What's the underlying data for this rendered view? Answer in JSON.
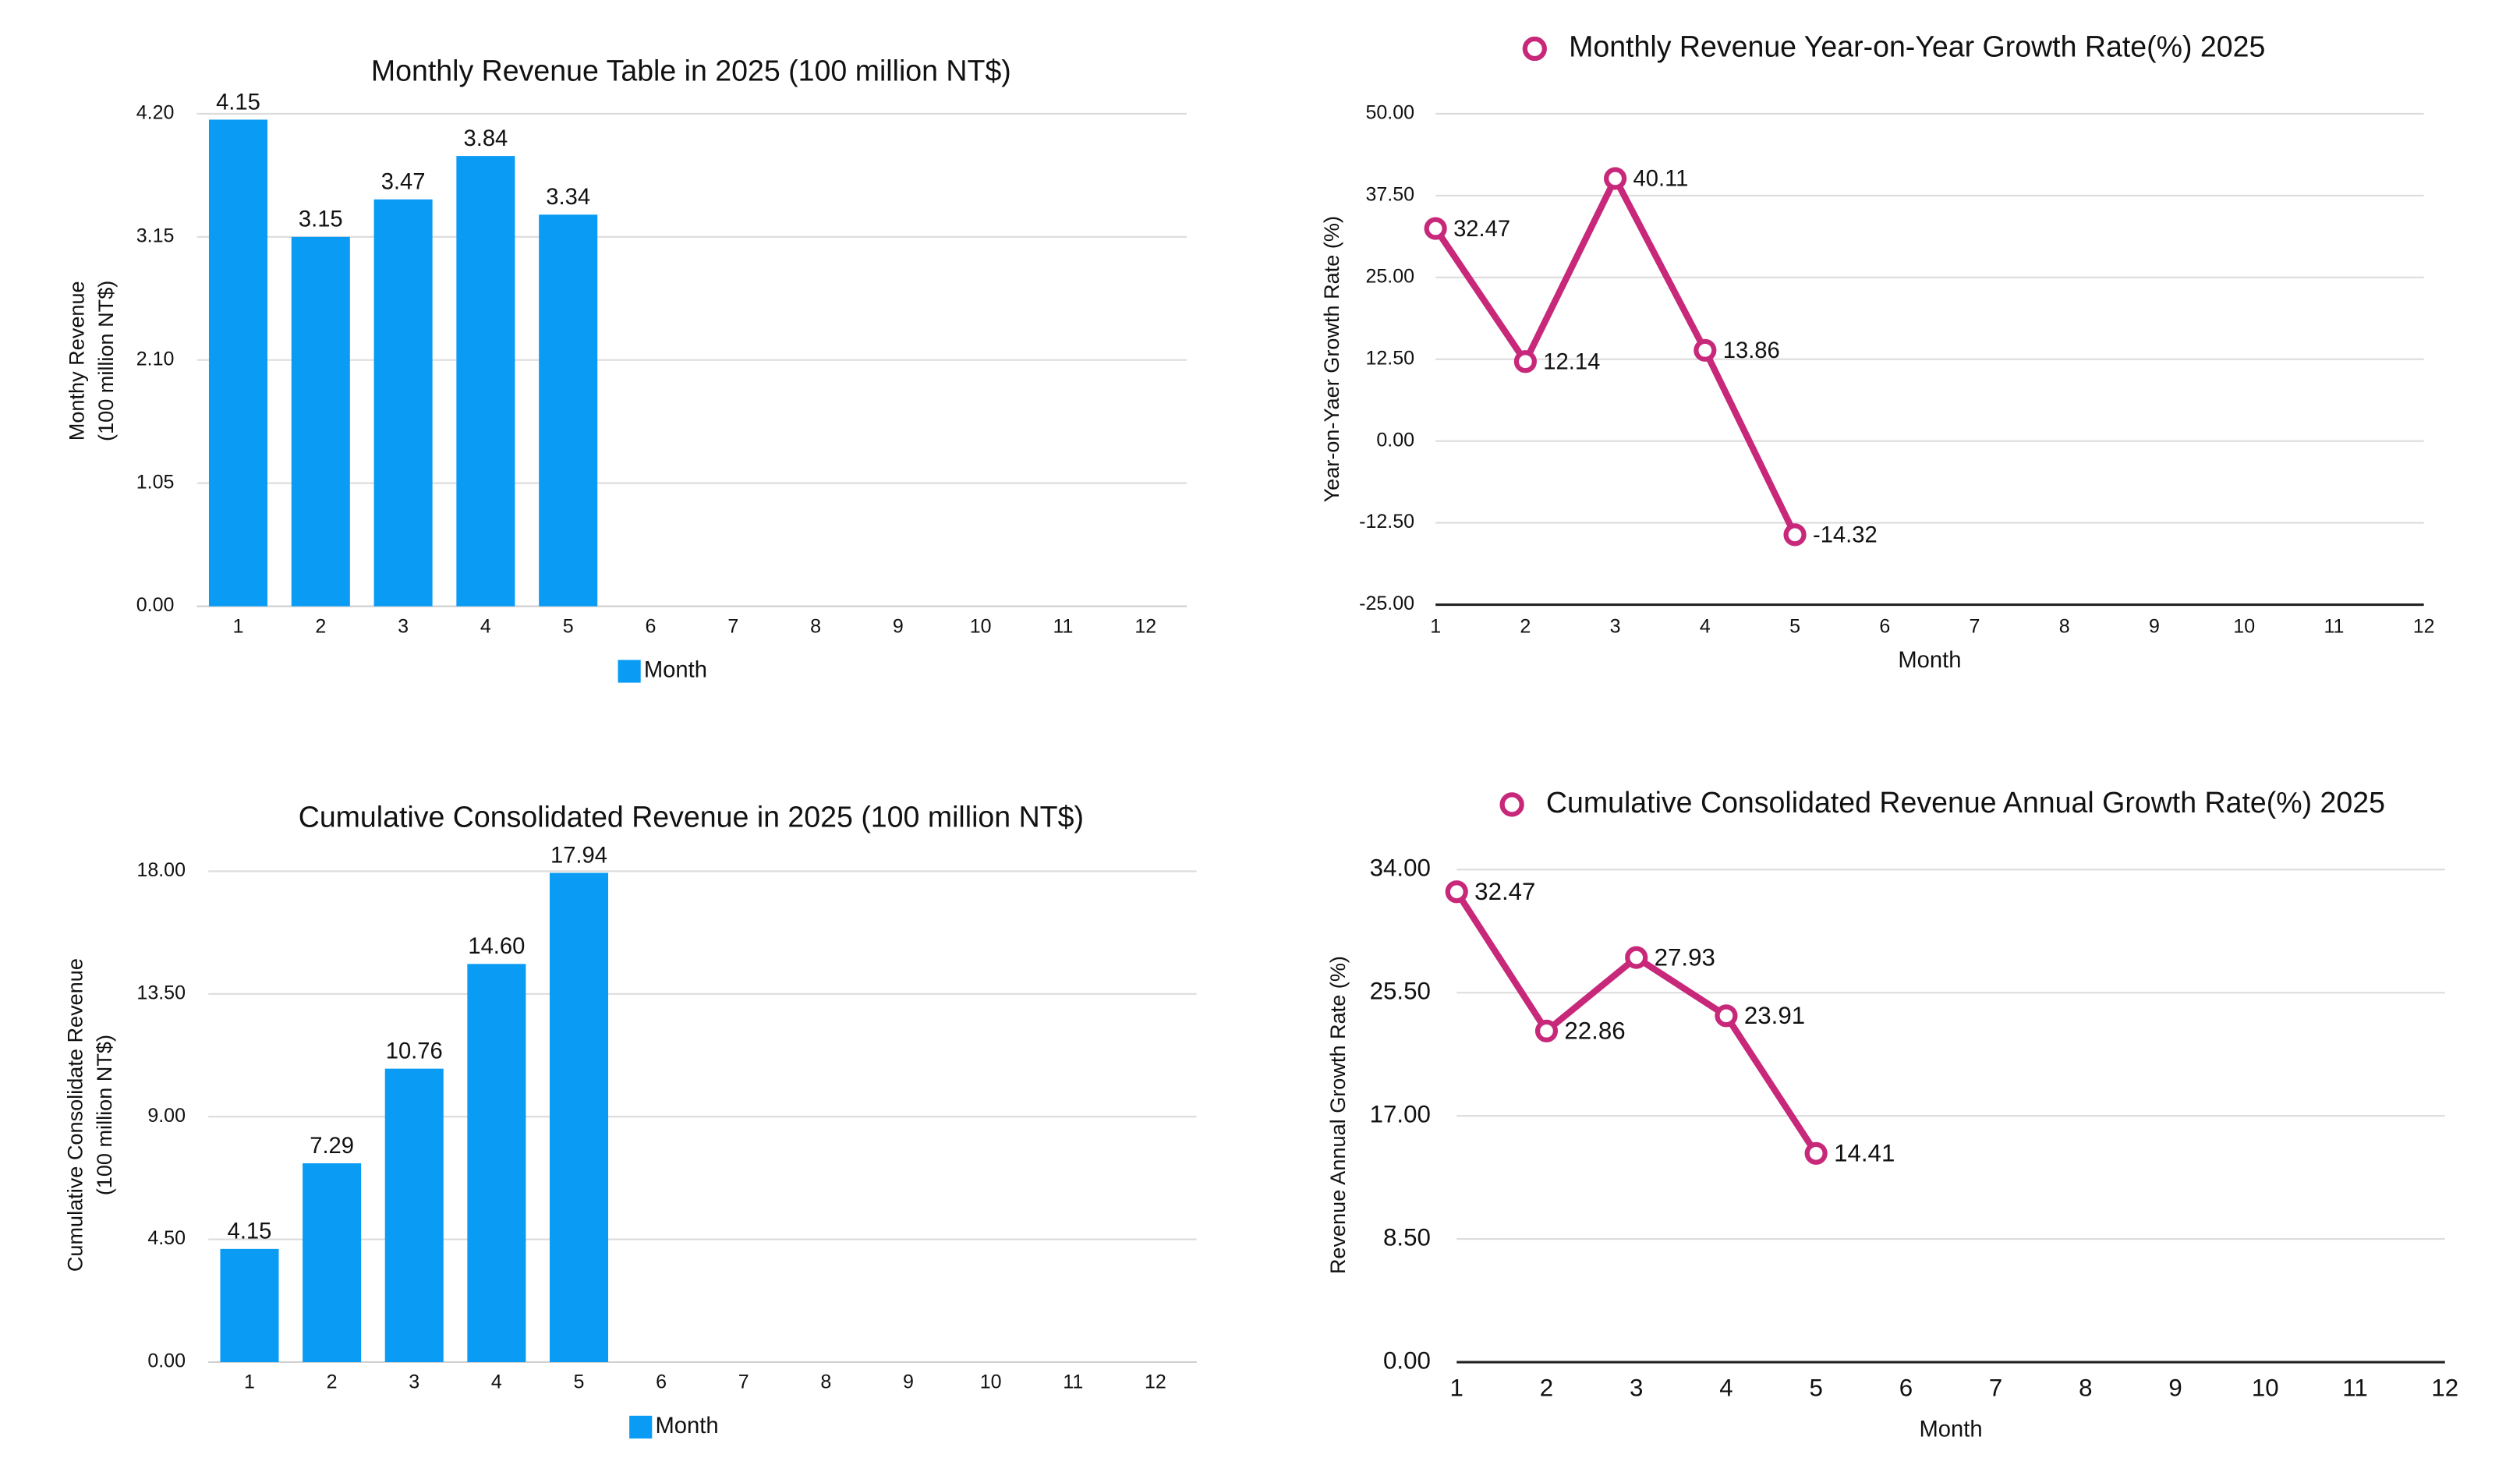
{
  "chart_data": [
    {
      "type": "bar",
      "title": "Monthly Revenue Table in 2025 (100 million NT$)",
      "ylabel": [
        "Monthy Revenue",
        "(100 million NT$)"
      ],
      "categories": [
        1,
        2,
        3,
        4,
        5,
        6,
        7,
        8,
        9,
        10,
        11,
        12
      ],
      "series": [
        {
          "name": "Month",
          "color": "#0a9cf5",
          "values": [
            4.15,
            3.15,
            3.47,
            3.84,
            3.34,
            null,
            null,
            null,
            null,
            null,
            null,
            null
          ],
          "value_labels": [
            "4.15",
            "3.15",
            "3.47",
            "3.84",
            "3.34",
            null,
            null,
            null,
            null,
            null,
            null,
            null
          ]
        }
      ],
      "ylim": [
        0,
        4.2
      ],
      "yticks": [
        {
          "value": 0,
          "label": "0.00"
        },
        {
          "value": 1.05,
          "label": "1.05"
        },
        {
          "value": 2.1,
          "label": "2.10"
        },
        {
          "value": 3.15,
          "label": "3.15"
        },
        {
          "value": 4.2,
          "label": "4.20"
        }
      ],
      "grid": true,
      "legend": "bottom"
    },
    {
      "type": "line",
      "ylabel": [
        "Year-on-Yaer Growth Rate (%)"
      ],
      "xlabel": "Month",
      "x": [
        1,
        2,
        3,
        4,
        5
      ],
      "series": [
        {
          "name": "Monthly Revenue Year-on-Year Growth Rate(%) 2025",
          "color": "#c8287a",
          "values": [
            32.47,
            12.14,
            40.11,
            13.86,
            -14.32
          ]
        }
      ],
      "xlim": [
        1,
        12
      ],
      "xticks": [
        1,
        2,
        3,
        4,
        5,
        6,
        7,
        8,
        9,
        10,
        11,
        12
      ],
      "ylim": [
        -25,
        50
      ],
      "yticks": [
        {
          "value": -25,
          "label": "-25.00"
        },
        {
          "value": -12.5,
          "label": "-12.50"
        },
        {
          "value": 0,
          "label": "0.00"
        },
        {
          "value": 12.5,
          "label": "12.50"
        },
        {
          "value": 25,
          "label": "25.00"
        },
        {
          "value": 37.5,
          "label": "37.50"
        },
        {
          "value": 50,
          "label": "50.00"
        }
      ],
      "grid": true,
      "legend": "top"
    },
    {
      "type": "bar",
      "title": "Cumulative Consolidated Revenue in 2025 (100 million NT$)",
      "ylabel": [
        "Cumulative Consolidate Revenue",
        "(100 million NT$)"
      ],
      "categories": [
        1,
        2,
        3,
        4,
        5,
        6,
        7,
        8,
        9,
        10,
        11,
        12
      ],
      "series": [
        {
          "name": "Month",
          "color": "#0a9cf5",
          "values": [
            4.15,
            7.29,
            10.76,
            14.6,
            17.94,
            null,
            null,
            null,
            null,
            null,
            null,
            null
          ],
          "value_labels": [
            "4.15",
            "7.29",
            "10.76",
            "14.60",
            "17.94",
            null,
            null,
            null,
            null,
            null,
            null,
            null
          ]
        }
      ],
      "ylim": [
        0,
        18
      ],
      "yticks": [
        {
          "value": 0,
          "label": "0.00"
        },
        {
          "value": 4.5,
          "label": "4.50"
        },
        {
          "value": 9,
          "label": "9.00"
        },
        {
          "value": 13.5,
          "label": "13.50"
        },
        {
          "value": 18,
          "label": "18.00"
        }
      ],
      "grid": true,
      "legend": "bottom"
    },
    {
      "type": "line",
      "ylabel": [
        "Revenue Annual Growth Rate (%)"
      ],
      "xlabel": "Month",
      "x": [
        1,
        2,
        3,
        4,
        5
      ],
      "series": [
        {
          "name": "Cumulative Consolidated Revenue Annual Growth Rate(%) 2025",
          "color": "#c8287a",
          "values": [
            32.47,
            22.86,
            27.93,
            23.91,
            14.41
          ]
        }
      ],
      "xlim": [
        1,
        12
      ],
      "xticks": [
        1,
        2,
        3,
        4,
        5,
        6,
        7,
        8,
        9,
        10,
        11,
        12
      ],
      "ylim": [
        0,
        34
      ],
      "yticks": [
        {
          "value": 0,
          "label": "0.00"
        },
        {
          "value": 8.5,
          "label": "8.50"
        },
        {
          "value": 17,
          "label": "17.00"
        },
        {
          "value": 25.5,
          "label": "25.50"
        },
        {
          "value": 34,
          "label": "34.00"
        }
      ],
      "grid": true,
      "legend": "top"
    }
  ]
}
